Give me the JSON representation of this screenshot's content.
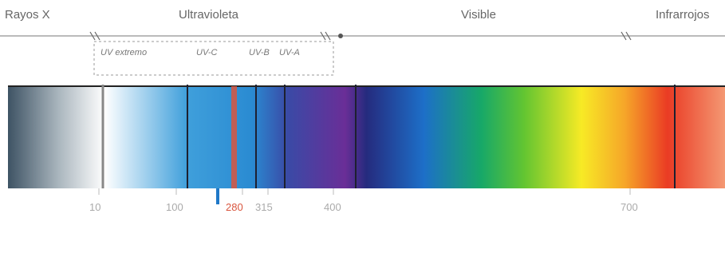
{
  "regions": [
    {
      "id": "xray",
      "label": "Rayos X"
    },
    {
      "id": "uv",
      "label": "Ultravioleta"
    },
    {
      "id": "visible",
      "label": "Visible"
    },
    {
      "id": "ir",
      "label": "Infrarrojos"
    }
  ],
  "uv_bands": [
    {
      "id": "uv-extreme",
      "label": "UV extremo"
    },
    {
      "id": "uvc",
      "label": "UV-C"
    },
    {
      "id": "uvb",
      "label": "UV-B"
    },
    {
      "id": "uva",
      "label": "UV-A"
    }
  ],
  "ticks": [
    {
      "id": "t1",
      "label": "10"
    },
    {
      "id": "t2",
      "label": "100"
    },
    {
      "id": "t3",
      "label": "280"
    },
    {
      "id": "t4",
      "label": "315"
    },
    {
      "id": "t5",
      "label": "400"
    },
    {
      "id": "t6",
      "label": "700"
    }
  ],
  "colors": {
    "marker_red": "#d9563f",
    "marker_blue": "#1f78c8"
  }
}
